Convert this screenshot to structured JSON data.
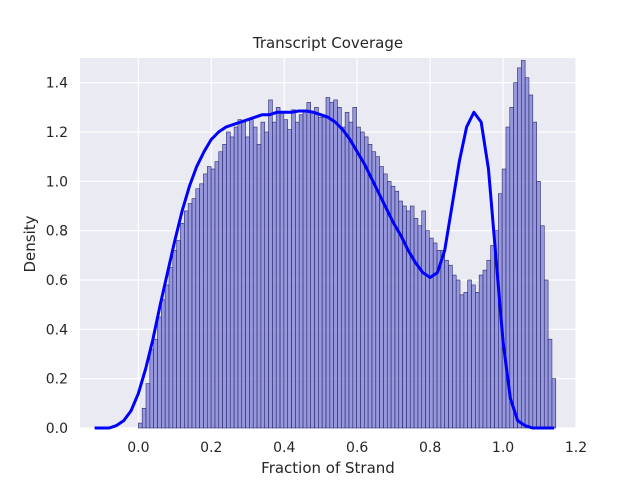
{
  "chart_data": {
    "type": "bar",
    "title": "Transcript Coverage",
    "xlabel": "Fraction of Strand",
    "ylabel": "Density",
    "xlim": [
      -0.16,
      1.2
    ],
    "ylim": [
      0,
      1.5
    ],
    "xticks": [
      0.0,
      0.2,
      0.4,
      0.6,
      0.8,
      1.0,
      1.2
    ],
    "yticks": [
      0.0,
      0.2,
      0.4,
      0.6,
      0.8,
      1.0,
      1.2,
      1.4
    ],
    "xtick_labels": [
      "0.0",
      "0.2",
      "0.4",
      "0.6",
      "0.8",
      "1.0",
      "1.2"
    ],
    "ytick_labels": [
      "0.0",
      "0.2",
      "0.4",
      "0.6",
      "0.8",
      "1.0",
      "1.2",
      "1.4"
    ],
    "grid": true,
    "background_color": "#eaeaf2",
    "bar_color": "#7b7bd6",
    "bar_edge_color": "#2a2a6a",
    "kde_color": "#0000ff",
    "histogram": {
      "bin_start": 0.0,
      "bin_width": 0.0105,
      "values": [
        0.02,
        0.08,
        0.18,
        0.32,
        0.36,
        0.45,
        0.52,
        0.58,
        0.65,
        0.72,
        0.76,
        0.83,
        0.88,
        0.91,
        0.93,
        0.97,
        0.99,
        1.03,
        1.06,
        1.05,
        1.08,
        1.12,
        1.15,
        1.2,
        1.18,
        1.22,
        1.25,
        1.24,
        1.18,
        1.25,
        1.22,
        1.15,
        1.24,
        1.2,
        1.33,
        1.24,
        1.3,
        1.28,
        1.25,
        1.21,
        1.29,
        1.24,
        1.27,
        1.28,
        1.32,
        1.28,
        1.3,
        1.26,
        1.26,
        1.34,
        1.32,
        1.33,
        1.3,
        1.22,
        1.28,
        1.24,
        1.3,
        1.22,
        1.2,
        1.18,
        1.15,
        1.12,
        1.1,
        1.06,
        1.03,
        1.0,
        0.98,
        0.96,
        0.92,
        0.9,
        0.88,
        0.9,
        0.85,
        0.82,
        0.88,
        0.8,
        0.77,
        0.75,
        0.72,
        0.72,
        0.68,
        0.66,
        0.62,
        0.6,
        0.54,
        0.55,
        0.6,
        0.58,
        0.55,
        0.62,
        0.64,
        0.68,
        0.74,
        0.8,
        0.95,
        1.05,
        1.22,
        1.3,
        1.4,
        1.46,
        1.49,
        1.42,
        1.35,
        1.24,
        1.0,
        0.82,
        0.6,
        0.36,
        0.2
      ]
    },
    "kde": {
      "x": [
        -0.12,
        -0.1,
        -0.08,
        -0.06,
        -0.04,
        -0.02,
        0.0,
        0.02,
        0.04,
        0.06,
        0.08,
        0.1,
        0.12,
        0.14,
        0.16,
        0.18,
        0.2,
        0.22,
        0.24,
        0.26,
        0.28,
        0.3,
        0.32,
        0.34,
        0.36,
        0.38,
        0.4,
        0.42,
        0.44,
        0.46,
        0.48,
        0.5,
        0.52,
        0.54,
        0.56,
        0.58,
        0.6,
        0.62,
        0.64,
        0.66,
        0.68,
        0.7,
        0.72,
        0.74,
        0.76,
        0.78,
        0.8,
        0.82,
        0.84,
        0.86,
        0.88,
        0.9,
        0.92,
        0.94,
        0.96,
        0.98,
        1.0,
        1.02,
        1.04,
        1.06,
        1.08,
        1.1,
        1.12,
        1.14
      ],
      "y": [
        0.0,
        0.0,
        0.0,
        0.01,
        0.03,
        0.07,
        0.14,
        0.24,
        0.36,
        0.5,
        0.63,
        0.76,
        0.88,
        0.98,
        1.06,
        1.12,
        1.17,
        1.2,
        1.22,
        1.23,
        1.24,
        1.25,
        1.26,
        1.27,
        1.27,
        1.28,
        1.28,
        1.28,
        1.285,
        1.285,
        1.28,
        1.27,
        1.26,
        1.24,
        1.21,
        1.17,
        1.12,
        1.07,
        1.01,
        0.95,
        0.89,
        0.83,
        0.78,
        0.72,
        0.67,
        0.63,
        0.61,
        0.63,
        0.72,
        0.9,
        1.08,
        1.22,
        1.28,
        1.24,
        1.05,
        0.7,
        0.35,
        0.12,
        0.03,
        0.01,
        0.0,
        0.0,
        0.0,
        0.0
      ]
    }
  }
}
